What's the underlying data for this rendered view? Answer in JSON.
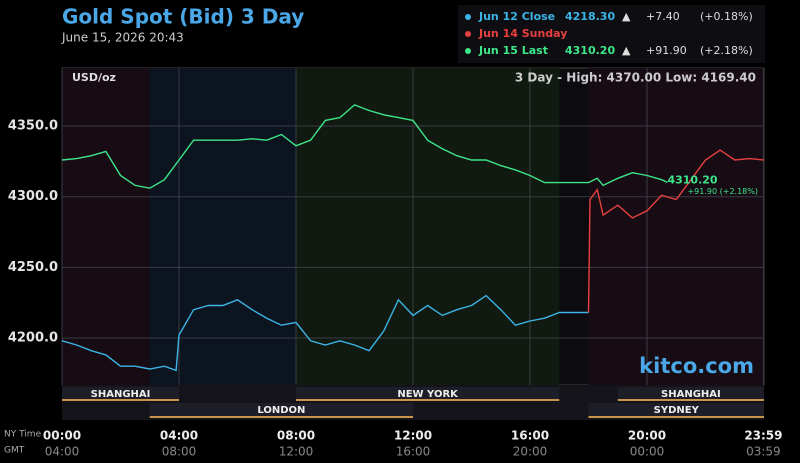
{
  "chart_data": {
    "type": "line",
    "title": "Gold Spot (Bid) 3 Day",
    "subtitle": "June 15, 2026 20:43",
    "unit_label": "USD/oz",
    "stats": "3 Day - High: 4370.00  Low: 4169.40",
    "watermark": "kitco.com",
    "x_axis_label": "NY Time",
    "x2_axis_label": "GMT",
    "xlim": [
      0,
      24
    ],
    "ylim": [
      4166.7,
      4391.1
    ],
    "xticks": [
      {
        "value": 0,
        "label": "00:00"
      },
      {
        "value": 4,
        "label": "04:00"
      },
      {
        "value": 8,
        "label": "08:00"
      },
      {
        "value": 12,
        "label": "12:00"
      },
      {
        "value": 16,
        "label": "16:00"
      },
      {
        "value": 20,
        "label": "20:00"
      },
      {
        "value": 23.98,
        "label": "23:59"
      }
    ],
    "x2ticks": [
      {
        "value": 0,
        "label": "04:00"
      },
      {
        "value": 4,
        "label": "08:00"
      },
      {
        "value": 8,
        "label": "12:00"
      },
      {
        "value": 12,
        "label": "16:00"
      },
      {
        "value": 16,
        "label": "20:00"
      },
      {
        "value": 20,
        "label": "00:00"
      },
      {
        "value": 23.98,
        "label": "03:59"
      }
    ],
    "yticks": [
      {
        "value": 4200,
        "label": "4200.0"
      },
      {
        "value": 4250,
        "label": "4250.0"
      },
      {
        "value": 4300,
        "label": "4300.0"
      },
      {
        "value": 4350,
        "label": "4350.0"
      }
    ],
    "grid": true,
    "sessions_upper": [
      {
        "name": "SHANGHAI",
        "start": 0,
        "end": 4
      },
      {
        "name": "NEW YORK",
        "start": 8,
        "end": 17
      },
      {
        "name": "SHANGHAI",
        "start": 19,
        "end": 24
      }
    ],
    "sessions_lower": [
      {
        "name": "LONDON",
        "start": 3,
        "end": 12
      },
      {
        "name": "SYDNEY",
        "start": 18,
        "end": 24
      }
    ],
    "series": [
      {
        "name": "Jun 12 Close",
        "color": "#3cb4e6",
        "x": [
          0,
          0.5,
          1,
          1.5,
          2,
          2.5,
          3,
          3.5,
          3.9,
          4,
          4.5,
          5,
          5.5,
          6,
          6.5,
          7,
          7.5,
          8,
          8.5,
          9,
          9.5,
          10,
          10.5,
          11,
          11.5,
          12,
          12.5,
          13,
          13.5,
          14,
          14.5,
          15,
          15.5,
          16,
          16.5,
          17,
          17.5,
          18
        ],
        "values": [
          4198,
          4195,
          4191,
          4188,
          4180,
          4180,
          4178,
          4180,
          4177,
          4202,
          4220,
          4223,
          4223,
          4227,
          4220,
          4214,
          4209,
          4211,
          4198,
          4195,
          4198,
          4195,
          4191,
          4205,
          4227,
          4216,
          4223,
          4216,
          4220,
          4223,
          4230,
          4220,
          4209,
          4212,
          4214,
          4218,
          4218,
          4218
        ]
      },
      {
        "name": "Jun 14 Sunday",
        "color": "#e84040",
        "x": [
          18,
          18.05,
          18.3,
          18.5,
          19,
          19.5,
          20,
          20.5,
          21,
          21.5,
          22,
          22.5,
          23,
          23.5,
          24
        ],
        "values": [
          4218,
          4298,
          4305,
          4287,
          4294,
          4285,
          4290,
          4301,
          4298,
          4312,
          4326,
          4333,
          4326,
          4327,
          4326
        ]
      },
      {
        "name": "Jun 15 Last",
        "color": "#3ee68a",
        "x": [
          0,
          0.5,
          1,
          1.5,
          2,
          2.5,
          3,
          3.5,
          4,
          4.5,
          5,
          5.5,
          6,
          6.5,
          7,
          7.5,
          8,
          8.5,
          9,
          9.5,
          10,
          10.5,
          11,
          11.5,
          12,
          12.5,
          13,
          13.5,
          14,
          14.5,
          15,
          15.5,
          16,
          16.5,
          17,
          17.5,
          18,
          18.3,
          18.5,
          19,
          19.5,
          20,
          20.5,
          20.7
        ],
        "values": [
          4326,
          4327,
          4329,
          4332,
          4315,
          4308,
          4306,
          4312,
          4326,
          4340,
          4340,
          4340,
          4340,
          4341,
          4340,
          4344,
          4336,
          4340,
          4354,
          4356,
          4365,
          4361,
          4358,
          4356,
          4354,
          4340,
          4334,
          4329,
          4326,
          4326,
          4322,
          4319,
          4315,
          4310,
          4310,
          4310,
          4310,
          4313,
          4308,
          4313,
          4317,
          4315,
          4312,
          4310.2
        ]
      }
    ],
    "legend_info": [
      {
        "value": "4218.30",
        "arrow": "▲",
        "change": "+7.40",
        "pct": "(+0.18%)"
      },
      {},
      {
        "value": "4310.20",
        "arrow": "▲",
        "change": "+91.90",
        "pct": "(+2.18%)"
      }
    ],
    "annotations": [
      "4310.20",
      "+91.90 (+2.18%)"
    ]
  }
}
